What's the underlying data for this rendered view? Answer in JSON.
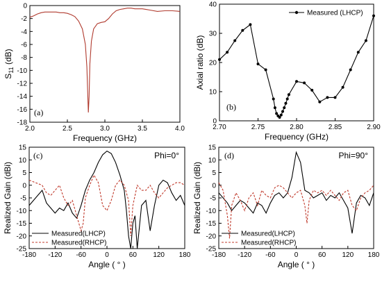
{
  "chart_data": [
    {
      "id": "a",
      "type": "line",
      "panel_tag": "(a)",
      "xlabel": "Frequency (GHz)",
      "ylabel_main": "S",
      "ylabel_sub": "11",
      "ylabel_unit": " (dB)",
      "xlim": [
        2.0,
        4.0
      ],
      "ylim": [
        -18,
        0
      ],
      "xticks": [
        2.0,
        2.5,
        3.0,
        3.5,
        4.0
      ],
      "xtick_labels": [
        "2.0",
        "2.5",
        "3.0",
        "3.5",
        "4.0"
      ],
      "yticks": [
        0,
        -2,
        -4,
        -6,
        -8,
        -10,
        -12,
        -14,
        -16,
        -18
      ],
      "ytick_labels": [
        "0",
        "-2",
        "-4",
        "-6",
        "-8",
        "-10",
        "-12",
        "-14",
        "-16",
        "-18"
      ],
      "series": [
        {
          "color": "#b03a2e",
          "x": [
            2.0,
            2.05,
            2.1,
            2.15,
            2.2,
            2.25,
            2.3,
            2.35,
            2.4,
            2.45,
            2.5,
            2.55,
            2.6,
            2.65,
            2.7,
            2.74,
            2.76,
            2.78,
            2.79,
            2.8,
            2.82,
            2.85,
            2.9,
            2.95,
            3.0,
            3.05,
            3.1,
            3.15,
            3.2,
            3.25,
            3.3,
            3.35,
            3.4,
            3.45,
            3.5,
            3.55,
            3.6,
            3.7,
            3.8,
            3.9,
            4.0
          ],
          "y": [
            -1.8,
            -1.6,
            -1.3,
            -1.1,
            -1.0,
            -1.0,
            -1.0,
            -1.0,
            -1.1,
            -1.1,
            -1.2,
            -1.4,
            -1.7,
            -2.4,
            -3.6,
            -6.0,
            -9.5,
            -16.5,
            -14.0,
            -9.0,
            -5.5,
            -3.6,
            -2.8,
            -2.6,
            -2.5,
            -2.0,
            -1.3,
            -0.8,
            -0.6,
            -0.5,
            -0.4,
            -0.4,
            -0.5,
            -0.5,
            -0.5,
            -0.6,
            -0.7,
            -0.9,
            -0.8,
            -0.8,
            -0.9
          ]
        }
      ]
    },
    {
      "id": "b",
      "type": "line",
      "panel_tag": "(b)",
      "xlabel": "Frequency (GHz)",
      "ylabel": "Axial ratio (dB)",
      "xlim": [
        2.7,
        2.9
      ],
      "ylim": [
        0,
        40
      ],
      "xticks": [
        2.7,
        2.75,
        2.8,
        2.85,
        2.9
      ],
      "xtick_labels": [
        "2.70",
        "2.75",
        "2.80",
        "2.85",
        "2.90"
      ],
      "yticks": [
        0,
        10,
        20,
        30,
        40
      ],
      "ytick_labels": [
        "0",
        "10",
        "20",
        "30",
        "40"
      ],
      "legend": "top-right",
      "series": [
        {
          "name": "Measured (LHCP)",
          "color": "#000000",
          "marker": "circle",
          "x": [
            2.7,
            2.71,
            2.72,
            2.73,
            2.74,
            2.75,
            2.76,
            2.77,
            2.772,
            2.774,
            2.776,
            2.778,
            2.78,
            2.782,
            2.784,
            2.786,
            2.788,
            2.79,
            2.8,
            2.81,
            2.82,
            2.83,
            2.84,
            2.85,
            2.86,
            2.87,
            2.88,
            2.89,
            2.9
          ],
          "y": [
            21,
            23.5,
            27.5,
            31,
            33,
            19.5,
            17.5,
            7.5,
            4.5,
            2.5,
            1.7,
            1.2,
            2.0,
            3.2,
            4.5,
            6.0,
            7.5,
            9.0,
            13.5,
            13.0,
            10.5,
            6.5,
            8.0,
            8.0,
            11.5,
            17.5,
            23.5,
            27.5,
            36
          ]
        }
      ]
    },
    {
      "id": "c",
      "type": "line",
      "panel_tag": "(c)",
      "annotation": "Phi=0°",
      "xlabel": "Angle ( ° )",
      "ylabel": "Realized Gain (dBi)",
      "xlim": [
        -180,
        180
      ],
      "ylim": [
        -25,
        15
      ],
      "xticks": [
        -180,
        -120,
        -60,
        0,
        60,
        120,
        180
      ],
      "xtick_labels": [
        "-180",
        "-120",
        "-60",
        "0",
        "60",
        "120",
        "180"
      ],
      "yticks": [
        15,
        10,
        5,
        0,
        -5,
        -10,
        -15,
        -20,
        -25
      ],
      "ytick_labels": [
        "15",
        "10",
        "5",
        "0",
        "-5",
        "-10",
        "-15",
        "-20",
        "-25"
      ],
      "legend": "bottom-left",
      "series": [
        {
          "name": "Measured(LHCP)",
          "color": "#000000",
          "dash": "solid",
          "x": [
            -180,
            -170,
            -160,
            -150,
            -140,
            -130,
            -120,
            -110,
            -100,
            -90,
            -80,
            -70,
            -60,
            -50,
            -40,
            -30,
            -20,
            -10,
            0,
            10,
            20,
            30,
            40,
            45,
            50,
            55,
            60,
            65,
            70,
            80,
            90,
            100,
            110,
            120,
            130,
            140,
            150,
            160,
            170,
            180
          ],
          "y": [
            -8,
            -6,
            -4,
            -2,
            -7,
            -9,
            -11,
            -9,
            -10,
            -7,
            -11,
            -13,
            -8,
            -2,
            2,
            5,
            9,
            12,
            13.5,
            12.5,
            9,
            4,
            -2,
            -10,
            -20,
            -25,
            -15,
            -12,
            -25,
            -8,
            -6,
            -18,
            -8,
            0,
            2,
            1,
            -3,
            -6,
            -4,
            -8
          ]
        },
        {
          "name": "Measured(RHCP)",
          "color": "#c0392b",
          "dash": "dashed",
          "x": [
            -180,
            -165,
            -150,
            -140,
            -130,
            -120,
            -110,
            -100,
            -90,
            -80,
            -70,
            -60,
            -55,
            -50,
            -40,
            -30,
            -20,
            -10,
            0,
            10,
            20,
            30,
            40,
            50,
            55,
            60,
            70,
            80,
            90,
            100,
            110,
            120,
            130,
            140,
            150,
            160,
            170,
            180
          ],
          "y": [
            2,
            1,
            0,
            -3,
            -4,
            -2,
            0,
            -5,
            -8,
            -6,
            -12,
            -18,
            -15,
            -5,
            0,
            4,
            1,
            -8,
            -10,
            -6,
            0,
            2,
            0,
            -6,
            -20,
            -8,
            0,
            -2,
            -2,
            0,
            -3,
            -5,
            -3,
            -1,
            0,
            1,
            1,
            0
          ]
        }
      ]
    },
    {
      "id": "d",
      "type": "line",
      "panel_tag": "(d)",
      "annotation": "Phi=90°",
      "xlabel": "Angle ( ° )",
      "ylabel": "Realized Gain (dBi)",
      "xlim": [
        -180,
        180
      ],
      "ylim": [
        -25,
        15
      ],
      "xticks": [
        -180,
        -120,
        -60,
        0,
        60,
        120,
        180
      ],
      "xtick_labels": [
        "-180",
        "-120",
        "-60",
        "0",
        "60",
        "120",
        "180"
      ],
      "yticks": [
        15,
        10,
        5,
        0,
        -5,
        -10,
        -15,
        -20,
        -25
      ],
      "ytick_labels": [
        "15",
        "10",
        "5",
        "0",
        "-5",
        "-10",
        "-15",
        "-20",
        "-25"
      ],
      "legend": "bottom-left",
      "series": [
        {
          "name": "Measured(LHCP)",
          "color": "#000000",
          "dash": "solid",
          "x": [
            -180,
            -170,
            -160,
            -150,
            -140,
            -130,
            -120,
            -110,
            -100,
            -90,
            -80,
            -70,
            -60,
            -50,
            -40,
            -30,
            -20,
            -10,
            0,
            10,
            20,
            30,
            40,
            50,
            60,
            70,
            80,
            90,
            100,
            110,
            120,
            130,
            140,
            150,
            160,
            170,
            180
          ],
          "y": [
            -3,
            -5,
            -7,
            -10,
            -8,
            -6,
            -7,
            -9,
            -11,
            -7,
            -8,
            -11,
            -7,
            -4,
            -3,
            -5,
            -3,
            3,
            13,
            9,
            -2,
            -3,
            -5,
            -4,
            -3,
            -6,
            -4,
            -5,
            -3,
            -6,
            -9,
            -19,
            -7,
            -4,
            -5,
            -8,
            -3
          ]
        },
        {
          "name": "Measured(RHCP)",
          "color": "#c0392b",
          "dash": "dashed",
          "x": [
            -180,
            -170,
            -160,
            -155,
            -150,
            -140,
            -130,
            -120,
            -110,
            -100,
            -90,
            -80,
            -70,
            -60,
            -50,
            -40,
            -30,
            -20,
            -10,
            0,
            10,
            20,
            25,
            30,
            40,
            50,
            60,
            70,
            80,
            90,
            100,
            110,
            120,
            130,
            140,
            150,
            160,
            170,
            180
          ],
          "y": [
            1,
            -2,
            -12,
            -21,
            -8,
            -3,
            -6,
            -10,
            -5,
            -3,
            -8,
            -2,
            -4,
            -5,
            -1,
            0,
            -1,
            -3,
            -5,
            -3,
            -2,
            -8,
            -15,
            -6,
            -2,
            -3,
            -2,
            -4,
            -2,
            -4,
            -6,
            -3,
            -2,
            -8,
            -10,
            -5,
            -3,
            -2,
            0
          ]
        }
      ]
    }
  ]
}
